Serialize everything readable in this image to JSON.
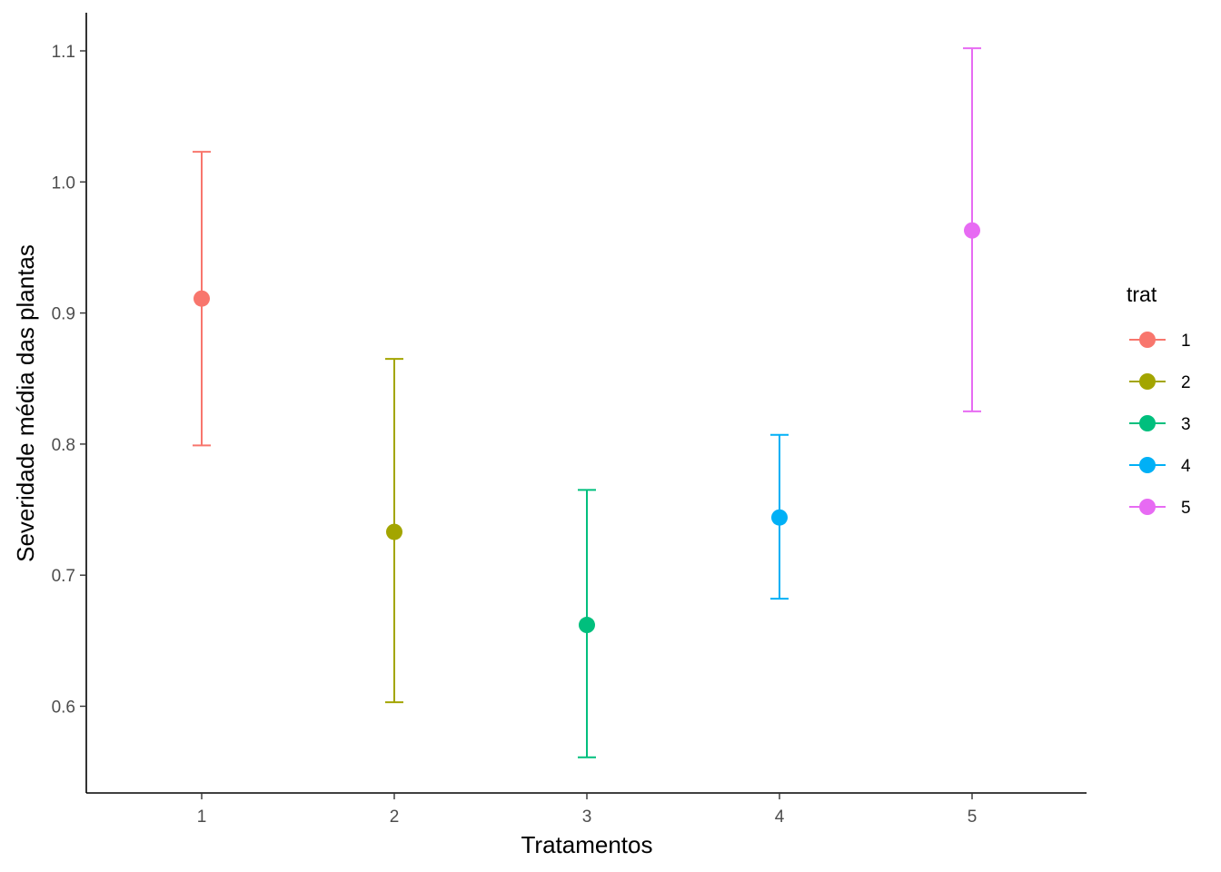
{
  "chart_data": {
    "type": "scatter",
    "subtype": "point-with-errorbars",
    "title": "",
    "xlabel": "Tratamentos",
    "ylabel": "Severidade média das plantas",
    "categories": [
      "1",
      "2",
      "3",
      "4",
      "5"
    ],
    "ylim": [
      0.535,
      1.13
    ],
    "yticks": [
      "0.6",
      "0.7",
      "0.8",
      "0.9",
      "1.0",
      "1.1"
    ],
    "grid": false,
    "points": [
      {
        "x": "1",
        "y": 0.911,
        "ymin": 0.799,
        "ymax": 1.023,
        "color": "#F8766D"
      },
      {
        "x": "2",
        "y": 0.733,
        "ymin": 0.603,
        "ymax": 0.865,
        "color": "#A3A500"
      },
      {
        "x": "3",
        "y": 0.662,
        "ymin": 0.561,
        "ymax": 0.765,
        "color": "#00BF7D"
      },
      {
        "x": "4",
        "y": 0.744,
        "ymin": 0.682,
        "ymax": 0.807,
        "color": "#00B0F6"
      },
      {
        "x": "5",
        "y": 0.963,
        "ymin": 0.825,
        "ymax": 1.102,
        "color": "#E76BF3"
      }
    ],
    "legend": {
      "title": "trat",
      "placement": "right",
      "entries": [
        {
          "label": "1",
          "color": "#F8766D"
        },
        {
          "label": "2",
          "color": "#A3A500"
        },
        {
          "label": "3",
          "color": "#00BF7D"
        },
        {
          "label": "4",
          "color": "#00B0F6"
        },
        {
          "label": "5",
          "color": "#E76BF3"
        }
      ]
    }
  }
}
